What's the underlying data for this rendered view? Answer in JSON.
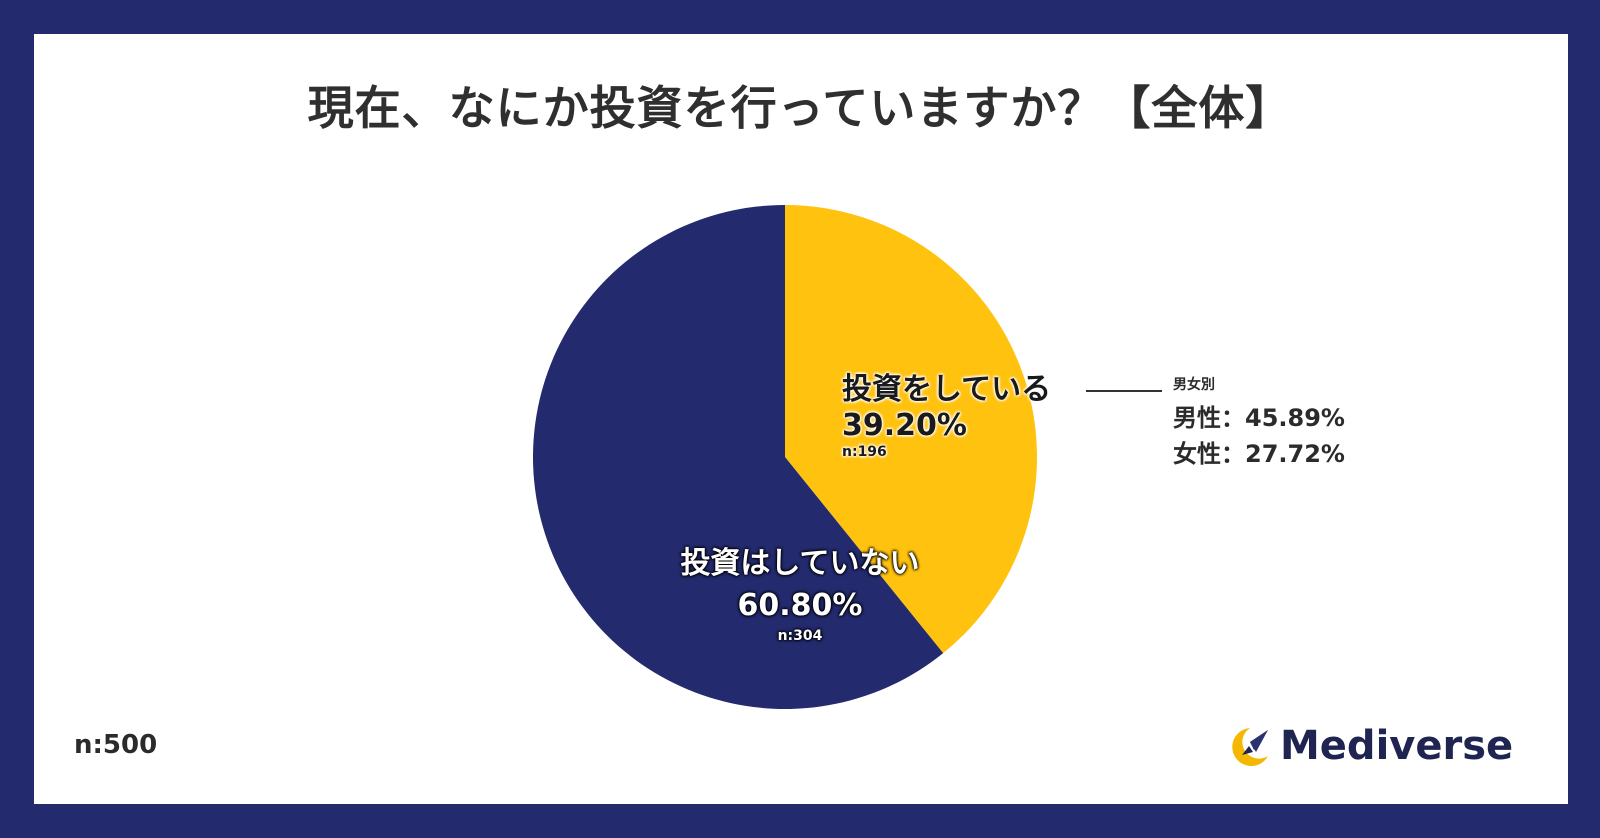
{
  "title": "現在、なにか投資を行っていますか？【全体】",
  "chart_data": {
    "type": "pie",
    "categories": [
      "投資をしている",
      "投資はしていない"
    ],
    "values": [
      39.2,
      60.8
    ],
    "value_labels": [
      "39.20%",
      "60.80%"
    ],
    "counts": [
      "n:196",
      "n:304"
    ],
    "colors": [
      "#ffc20e",
      "#232a6e"
    ]
  },
  "breakdown": {
    "heading": "男女別",
    "rows": [
      {
        "label": "男性",
        "sep": "：",
        "value": "45.89%"
      },
      {
        "label": "女性",
        "sep": "：",
        "value": "27.72%"
      }
    ]
  },
  "sample_size": "n:500",
  "logo": {
    "name": "Mediverse",
    "icon": "rocket-moon-icon",
    "accent": "#f5b800",
    "color": "#1f2450"
  }
}
